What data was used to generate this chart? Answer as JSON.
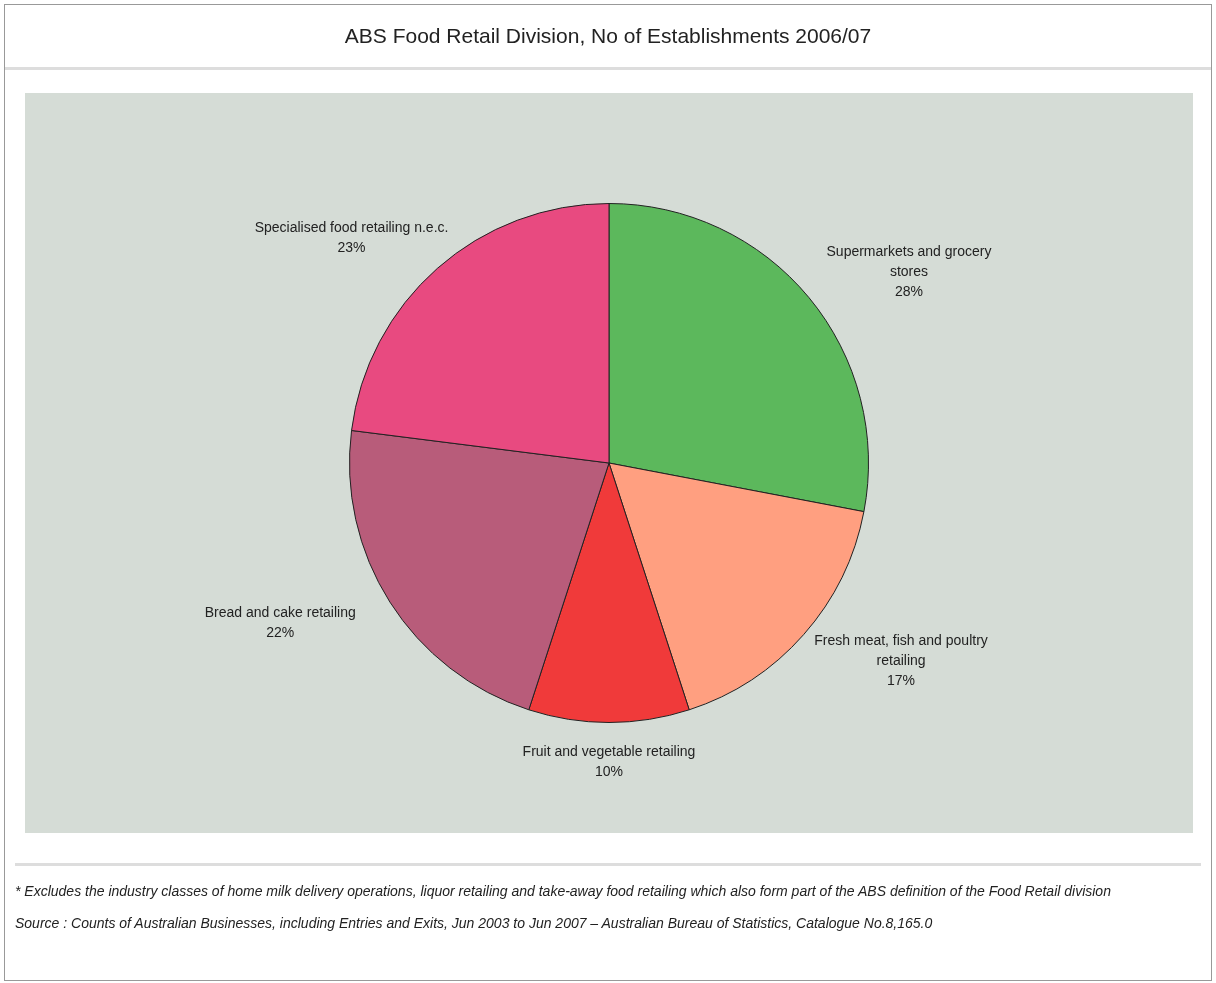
{
  "chart_data": {
    "type": "pie",
    "title": "ABS Food Retail Division, No of Establishments 2006/07",
    "categories": [
      "Supermarkets and grocery stores",
      "Fresh meat, fish and poultry retailing",
      "Fruit and vegetable retailing",
      "Bread and cake retailing",
      "Specialised food retailing n.e.c."
    ],
    "values": [
      28,
      17,
      10,
      22,
      23
    ],
    "value_labels": [
      "28%",
      "17%",
      "10%",
      "22%",
      "23%"
    ],
    "colors": [
      "#5cb85c",
      "#ff9f80",
      "#f03a3a",
      "#b85c7a",
      "#e84a80"
    ],
    "legend": false,
    "annotations": [
      "* Excludes the industry classes of home milk delivery operations, liquor retailing and take-away food retailing which also form part of the ABS definition of the Food Retail division",
      "Source : Counts of Australian Businesses, including Entries and Exits, Jun 2003 to Jun 2007 – Australian Bureau of Statistics, Catalogue No.8,165.0"
    ]
  }
}
